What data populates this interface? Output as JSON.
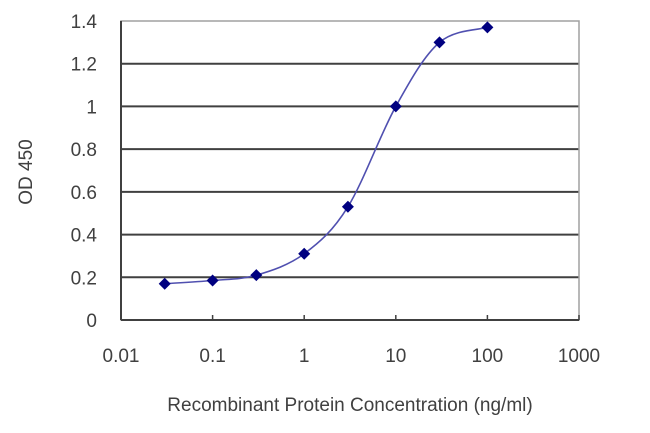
{
  "chart_data": {
    "type": "scatter",
    "title": "",
    "xlabel": "Recombinant Protein Concentration (ng/ml)",
    "ylabel": "OD 450",
    "xscale": "log",
    "xlim": [
      0.01,
      1000
    ],
    "ylim": [
      0,
      1.4
    ],
    "x_ticks": [
      "0.01",
      "0.1",
      "1",
      "10",
      "100",
      "1000"
    ],
    "y_ticks": [
      "0",
      "0.2",
      "0.4",
      "0.6",
      "0.8",
      "1",
      "1.2",
      "1.4"
    ],
    "grid": "horizontal",
    "legend": "none",
    "series": [
      {
        "name": "OD 450",
        "marker": "diamond",
        "line": "smooth",
        "color": "#000080",
        "line_color": "#5050b0",
        "x": [
          0.03,
          0.1,
          0.3,
          1,
          3,
          10,
          30,
          100
        ],
        "y": [
          0.17,
          0.185,
          0.21,
          0.31,
          0.53,
          1.0,
          1.3,
          1.37
        ]
      }
    ]
  },
  "colors": {
    "axis": "#404040",
    "grid": "#404040",
    "marker": "#000080",
    "curve": "#5050b0",
    "frame_right_top": "#a0a0a0"
  }
}
